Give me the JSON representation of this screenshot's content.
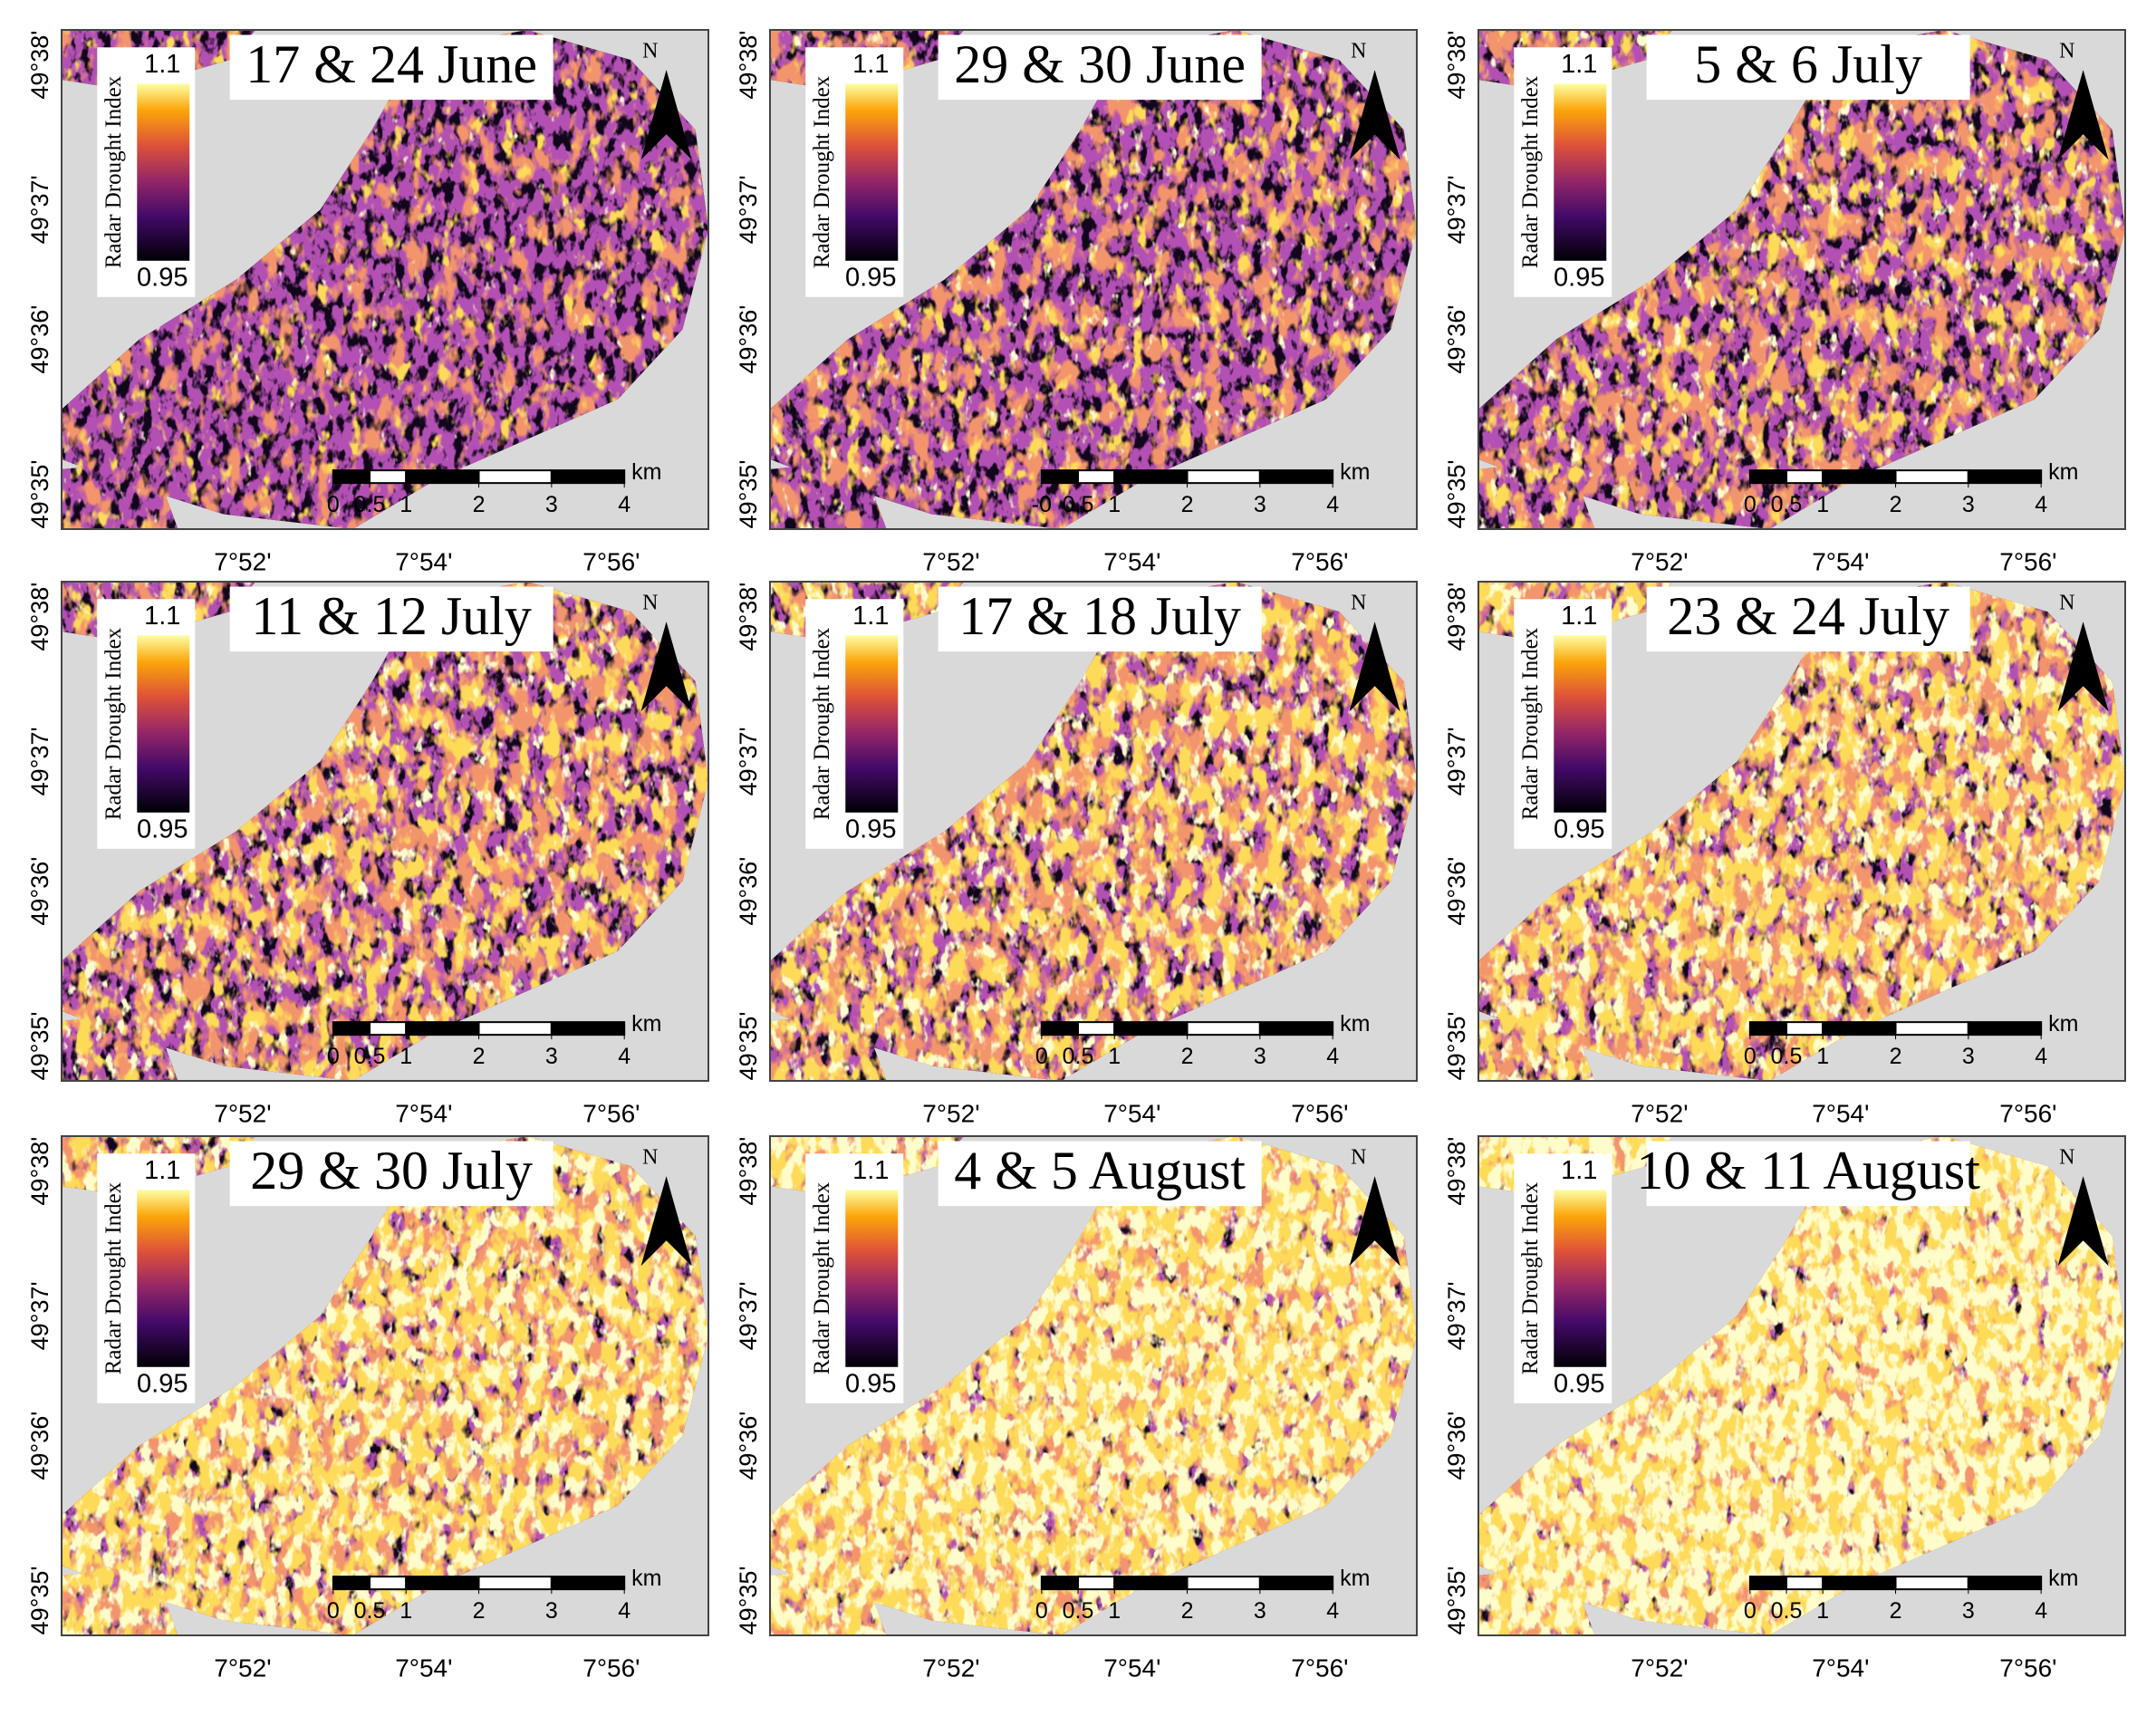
{
  "figure": {
    "legend_title": "Radar Drought Index",
    "legend_max": 1.1,
    "legend_min": 0.95,
    "north": "N",
    "scale_unit": "km",
    "lat_labels": [
      "49°38'",
      "49°37'",
      "49°36'",
      "49°35'"
    ],
    "lon_labels": [
      "7°52'",
      "7°54'",
      "7°56'"
    ],
    "panels": [
      {
        "title": "17 & 24 June",
        "scale_ticks": [
          0,
          0.5,
          1,
          2,
          3,
          4
        ]
      },
      {
        "title": "29 & 30 June",
        "scale_ticks": [
          {
            "value": 0,
            "label": "-0"
          },
          0.5,
          1,
          2,
          3,
          4
        ]
      },
      {
        "title": "5 & 6 July",
        "scale_ticks": [
          0,
          0.5,
          1,
          2,
          3,
          4
        ]
      },
      {
        "title": "11 & 12 July",
        "scale_ticks": [
          0,
          0.5,
          1,
          2,
          3,
          4
        ]
      },
      {
        "title": "17 & 18 July",
        "scale_ticks": [
          0,
          0.5,
          1,
          2,
          3,
          4
        ]
      },
      {
        "title": "23 & 24 July",
        "scale_ticks": [
          0,
          0.5,
          1,
          2,
          3,
          4
        ]
      },
      {
        "title": "29 & 30 July",
        "scale_ticks": [
          0,
          0.5,
          1,
          2,
          3,
          4
        ]
      },
      {
        "title": "4 & 5 August",
        "scale_ticks": [
          0,
          0.5,
          1,
          2,
          3,
          4
        ]
      },
      {
        "title": "10 & 11 August",
        "scale_ticks": [
          0,
          0.5,
          1,
          2,
          3,
          4
        ]
      }
    ]
  }
}
